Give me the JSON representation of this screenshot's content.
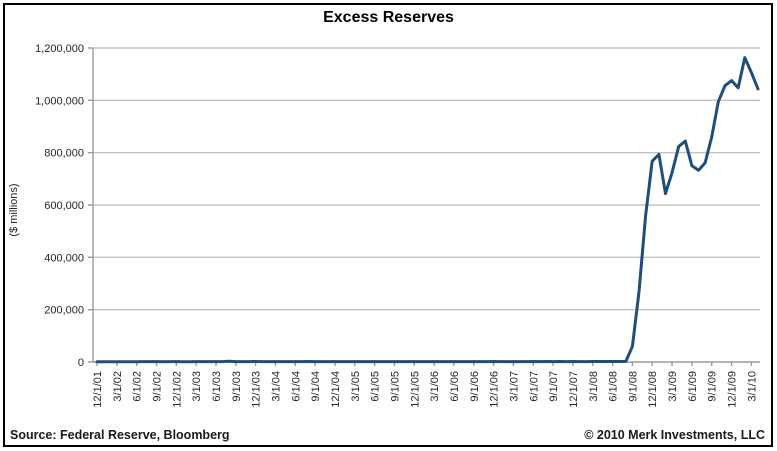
{
  "footer": {
    "source": "Source: Federal Reserve, Bloomberg",
    "copyright": "© 2010 Merk Investments, LLC"
  },
  "chart_data": {
    "type": "line",
    "title": "Excess Reserves",
    "xlabel": "",
    "ylabel": "($ millions)",
    "ylim": [
      0,
      1200000
    ],
    "yticks": [
      0,
      200000,
      400000,
      600000,
      800000,
      1000000,
      1200000
    ],
    "ytick_labels": [
      "0",
      "200,000",
      "400,000",
      "600,000",
      "800,000",
      "1,000,000",
      "1,200,000"
    ],
    "grid": true,
    "legend": "none",
    "line_color": "#1F4E79",
    "x_tick_step": 3,
    "x_tick_labels": [
      "12/1/01",
      "3/1/02",
      "6/1/02",
      "9/1/02",
      "12/1/02",
      "3/1/03",
      "6/1/03",
      "9/1/03",
      "12/1/03",
      "3/1/04",
      "6/1/04",
      "9/1/04",
      "12/1/04",
      "3/1/05",
      "6/1/05",
      "9/1/05",
      "12/1/05",
      "3/1/06",
      "6/1/06",
      "9/1/06",
      "12/1/06",
      "3/1/07",
      "6/1/07",
      "9/1/07",
      "12/1/07",
      "3/1/08",
      "6/1/08",
      "9/1/08",
      "12/1/08",
      "3/1/09",
      "6/1/09",
      "9/1/09",
      "12/1/09",
      "3/1/10"
    ],
    "x": [
      "12/1/01",
      "1/1/02",
      "2/1/02",
      "3/1/02",
      "4/1/02",
      "5/1/02",
      "6/1/02",
      "7/1/02",
      "8/1/02",
      "9/1/02",
      "10/1/02",
      "11/1/02",
      "12/1/02",
      "1/1/03",
      "2/1/03",
      "3/1/03",
      "4/1/03",
      "5/1/03",
      "6/1/03",
      "7/1/03",
      "8/1/03",
      "9/1/03",
      "10/1/03",
      "11/1/03",
      "12/1/03",
      "1/1/04",
      "2/1/04",
      "3/1/04",
      "4/1/04",
      "5/1/04",
      "6/1/04",
      "7/1/04",
      "8/1/04",
      "9/1/04",
      "10/1/04",
      "11/1/04",
      "12/1/04",
      "1/1/05",
      "2/1/05",
      "3/1/05",
      "4/1/05",
      "5/1/05",
      "6/1/05",
      "7/1/05",
      "8/1/05",
      "9/1/05",
      "10/1/05",
      "11/1/05",
      "12/1/05",
      "1/1/06",
      "2/1/06",
      "3/1/06",
      "4/1/06",
      "5/1/06",
      "6/1/06",
      "7/1/06",
      "8/1/06",
      "9/1/06",
      "10/1/06",
      "11/1/06",
      "12/1/06",
      "1/1/07",
      "2/1/07",
      "3/1/07",
      "4/1/07",
      "5/1/07",
      "6/1/07",
      "7/1/07",
      "8/1/07",
      "9/1/07",
      "10/1/07",
      "11/1/07",
      "12/1/07",
      "1/1/08",
      "2/1/08",
      "3/1/08",
      "4/1/08",
      "5/1/08",
      "6/1/08",
      "7/1/08",
      "8/1/08",
      "9/1/08",
      "10/1/08",
      "11/1/08",
      "12/1/08",
      "1/1/09",
      "2/1/09",
      "3/1/09",
      "4/1/09",
      "5/1/09",
      "6/1/09",
      "7/1/09",
      "8/1/09",
      "9/1/09",
      "10/1/09",
      "11/1/09",
      "12/1/09",
      "1/1/10",
      "2/1/10",
      "3/1/10",
      "4/1/10"
    ],
    "series": [
      {
        "name": "Excess Reserves",
        "values": [
          1322,
          1201,
          1254,
          1213,
          1269,
          1289,
          1296,
          1409,
          1429,
          1480,
          1268,
          1432,
          1610,
          1307,
          1334,
          1345,
          1434,
          1525,
          1585,
          1635,
          2555,
          1532,
          1518,
          1653,
          1789,
          1555,
          1575,
          1455,
          1506,
          1577,
          1652,
          1630,
          1753,
          1556,
          1565,
          1653,
          1711,
          1471,
          1395,
          1495,
          1561,
          1507,
          1528,
          1654,
          1614,
          1692,
          1587,
          1564,
          1702,
          1455,
          1558,
          1574,
          1651,
          1575,
          1699,
          1635,
          1663,
          1584,
          1602,
          1600,
          1879,
          1542,
          1617,
          1618,
          1702,
          1718,
          1800,
          1706,
          1934,
          1716,
          1746,
          1625,
          1788,
          1661,
          1717,
          1767,
          1795,
          1892,
          1916,
          1852,
          1988,
          59482,
          267901,
          559022,
          767322,
          793226,
          643488,
          724566,
          823846,
          844342,
          749984,
          733108,
          760901,
          859710,
          994872,
          1056085,
          1075226,
          1048035,
          1163309,
          1105905,
          1043435
        ]
      }
    ]
  }
}
